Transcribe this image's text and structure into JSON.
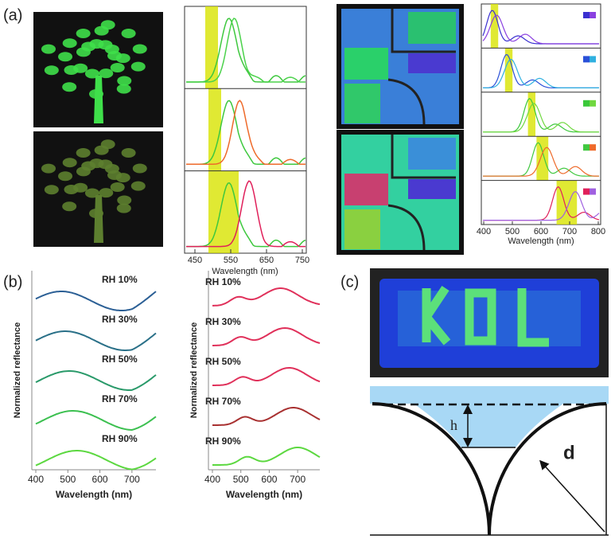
{
  "panel_labels": [
    "(a)",
    "(b)",
    "(c)"
  ],
  "panel_a": {
    "spectra_xticks": [
      450,
      550,
      650,
      750
    ],
    "spectra_xlabel": "Wavelength (nm)",
    "small_xticks": [
      400,
      500,
      600,
      700,
      800
    ],
    "small_xlabel": "Wavelength (nm)"
  },
  "panel_b": {
    "left": {
      "ylabel": "Normalized reflectance",
      "xticks": [
        400,
        500,
        600,
        700
      ],
      "xlabel": "Wavelength (nm)",
      "curves": [
        "RH 10%",
        "RH 30%",
        "RH 50%",
        "RH 70%",
        "RH 90%"
      ]
    },
    "right": {
      "ylabel": "Normalized reflectance",
      "xticks": [
        400,
        500,
        600,
        700
      ],
      "xlabel": "Wavelength (nm)",
      "curves": [
        "RH 10%",
        "RH 30%",
        "RH 50%",
        "RH 70%",
        "RH 90%"
      ]
    }
  },
  "panel_c": {
    "h": "h",
    "d": "d"
  }
}
